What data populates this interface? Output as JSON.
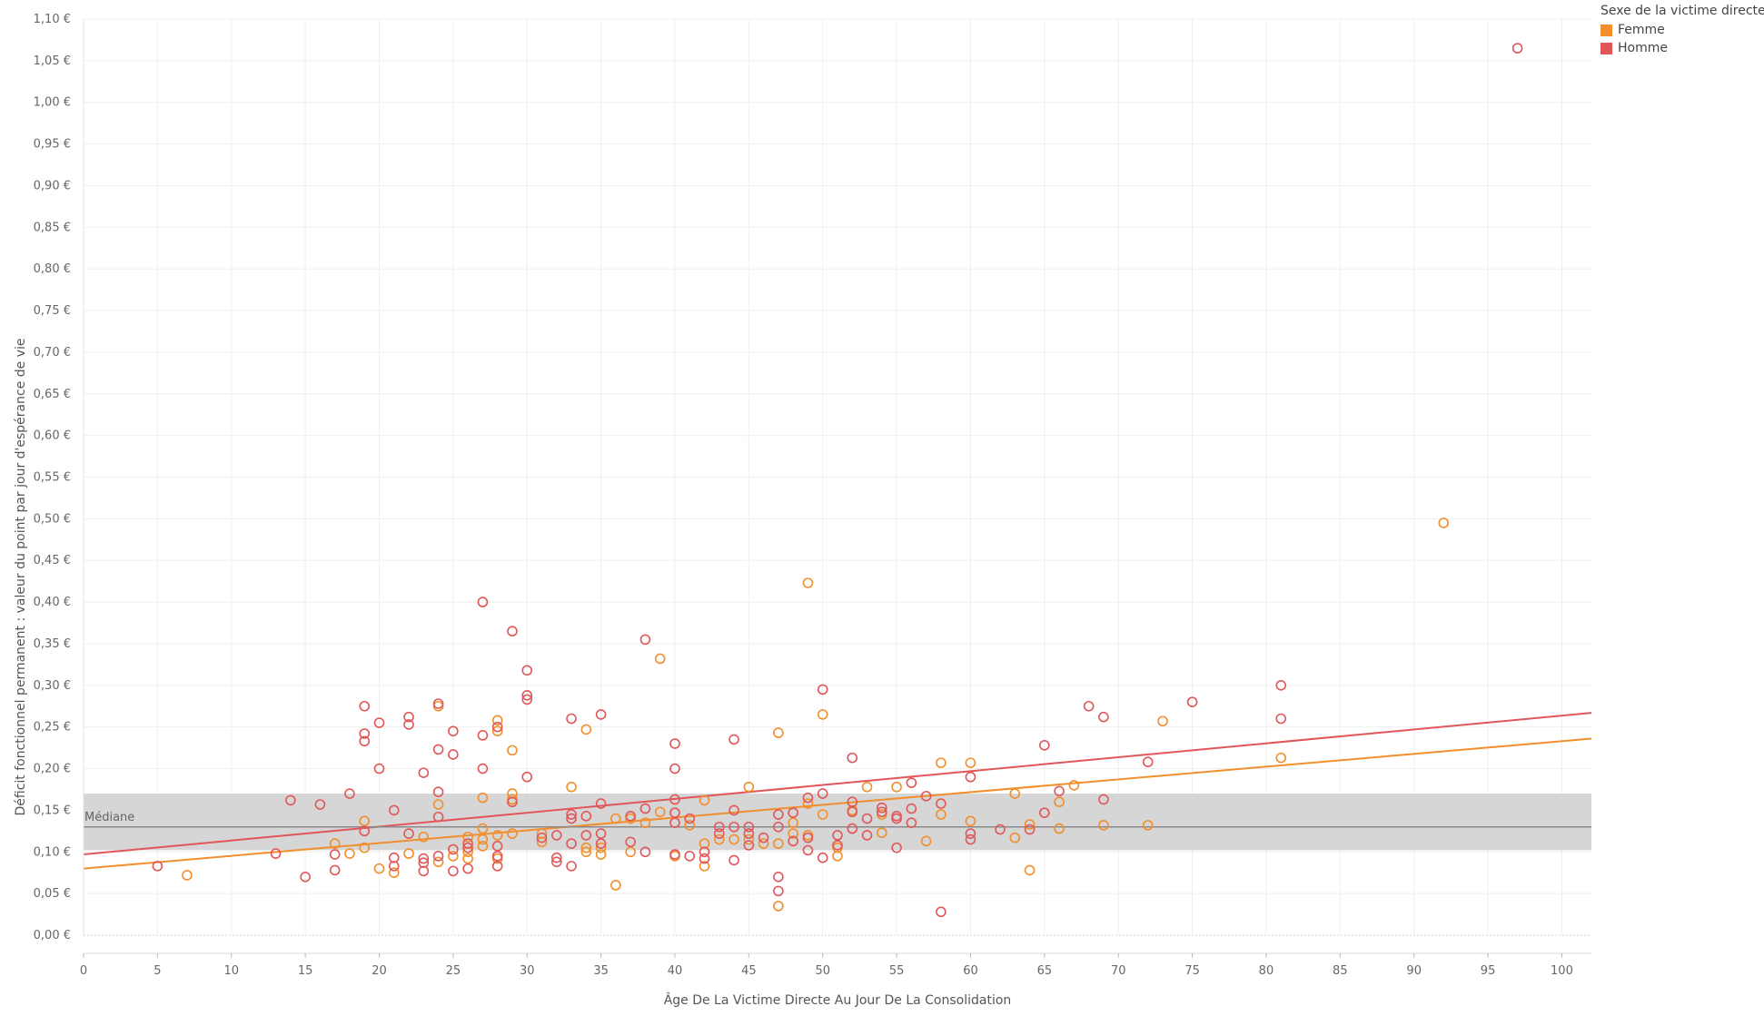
{
  "chart_data": {
    "type": "scatter",
    "xlabel": "Âge De La Victime Directe Au Jour De La Consolidation",
    "ylabel": "Déficit fonctionnel permanent : valeur du point par jour d'espérance de vie",
    "xlim": [
      0,
      102
    ],
    "ylim": [
      0,
      1.1
    ],
    "x_ticks": [
      0,
      5,
      10,
      15,
      20,
      25,
      30,
      35,
      40,
      45,
      50,
      55,
      60,
      65,
      70,
      75,
      80,
      85,
      90,
      95,
      100
    ],
    "x_tick_labels": [
      "0",
      "5",
      "10",
      "15",
      "20",
      "25",
      "30",
      "35",
      "40",
      "45",
      "50",
      "55",
      "60",
      "65",
      "70",
      "75",
      "80",
      "85",
      "90",
      "95",
      "100"
    ],
    "y_ticks": [
      0,
      0.05,
      0.1,
      0.15,
      0.2,
      0.25,
      0.3,
      0.35,
      0.4,
      0.45,
      0.5,
      0.55,
      0.6,
      0.65,
      0.7,
      0.75,
      0.8,
      0.85,
      0.9,
      0.95,
      1.0,
      1.05,
      1.1
    ],
    "y_tick_labels": [
      "0,00 €",
      "0,05 €",
      "0,10 €",
      "0,15 €",
      "0,20 €",
      "0,25 €",
      "0,30 €",
      "0,35 €",
      "0,40 €",
      "0,45 €",
      "0,50 €",
      "0,55 €",
      "0,60 €",
      "0,65 €",
      "0,70 €",
      "0,75 €",
      "0,80 €",
      "0,85 €",
      "0,90 €",
      "0,95 €",
      "1,00 €",
      "1,05 €",
      "1,10 €"
    ],
    "grid": true,
    "legend": {
      "title": "Sexe de la victime directe",
      "position": "top-right",
      "entries": [
        {
          "label": "Femme",
          "color": "#f28e2b"
        },
        {
          "label": "Homme",
          "color": "#e15759"
        }
      ]
    },
    "reference_band": {
      "y_min": 0.102,
      "y_max": 0.17,
      "color": "#d6d6d6"
    },
    "median": {
      "label": "Médiane",
      "value": 0.13
    },
    "series": [
      {
        "name": "Femme",
        "color": "#f28e2b",
        "trend": {
          "x0": 0,
          "y0": 0.08,
          "x1": 102,
          "y1": 0.236
        },
        "points": [
          [
            7,
            0.072
          ],
          [
            17,
            0.11
          ],
          [
            18,
            0.098
          ],
          [
            19,
            0.105
          ],
          [
            19,
            0.137
          ],
          [
            20,
            0.08
          ],
          [
            21,
            0.075
          ],
          [
            22,
            0.098
          ],
          [
            23,
            0.118
          ],
          [
            24,
            0.088
          ],
          [
            24,
            0.157
          ],
          [
            24,
            0.275
          ],
          [
            25,
            0.095
          ],
          [
            26,
            0.092
          ],
          [
            26,
            0.1
          ],
          [
            26,
            0.118
          ],
          [
            27,
            0.107
          ],
          [
            27,
            0.115
          ],
          [
            27,
            0.128
          ],
          [
            27,
            0.165
          ],
          [
            28,
            0.092
          ],
          [
            28,
            0.12
          ],
          [
            28,
            0.245
          ],
          [
            28,
            0.258
          ],
          [
            29,
            0.122
          ],
          [
            29,
            0.163
          ],
          [
            29,
            0.17
          ],
          [
            29,
            0.222
          ],
          [
            31,
            0.112
          ],
          [
            31,
            0.122
          ],
          [
            33,
            0.178
          ],
          [
            34,
            0.1
          ],
          [
            34,
            0.105
          ],
          [
            34,
            0.247
          ],
          [
            35,
            0.097
          ],
          [
            35,
            0.105
          ],
          [
            36,
            0.06
          ],
          [
            36,
            0.14
          ],
          [
            37,
            0.1
          ],
          [
            37,
            0.14
          ],
          [
            38,
            0.135
          ],
          [
            39,
            0.148
          ],
          [
            39,
            0.332
          ],
          [
            40,
            0.095
          ],
          [
            41,
            0.132
          ],
          [
            42,
            0.083
          ],
          [
            42,
            0.11
          ],
          [
            42,
            0.162
          ],
          [
            43,
            0.115
          ],
          [
            44,
            0.115
          ],
          [
            45,
            0.115
          ],
          [
            45,
            0.178
          ],
          [
            46,
            0.11
          ],
          [
            47,
            0.035
          ],
          [
            47,
            0.11
          ],
          [
            47,
            0.243
          ],
          [
            48,
            0.122
          ],
          [
            48,
            0.135
          ],
          [
            49,
            0.12
          ],
          [
            49,
            0.158
          ],
          [
            49,
            0.423
          ],
          [
            50,
            0.145
          ],
          [
            50,
            0.265
          ],
          [
            51,
            0.095
          ],
          [
            51,
            0.105
          ],
          [
            52,
            0.15
          ],
          [
            53,
            0.178
          ],
          [
            54,
            0.123
          ],
          [
            54,
            0.145
          ],
          [
            55,
            0.178
          ],
          [
            57,
            0.113
          ],
          [
            58,
            0.145
          ],
          [
            58,
            0.207
          ],
          [
            60,
            0.137
          ],
          [
            60,
            0.207
          ],
          [
            63,
            0.117
          ],
          [
            63,
            0.17
          ],
          [
            64,
            0.078
          ],
          [
            64,
            0.133
          ],
          [
            66,
            0.128
          ],
          [
            66,
            0.16
          ],
          [
            67,
            0.18
          ],
          [
            69,
            0.132
          ],
          [
            72,
            0.132
          ],
          [
            73,
            0.257
          ],
          [
            81,
            0.213
          ],
          [
            92,
            0.495
          ]
        ]
      },
      {
        "name": "Homme",
        "color": "#e15759",
        "trend": {
          "x0": 0,
          "y0": 0.097,
          "x1": 102,
          "y1": 0.267
        },
        "points": [
          [
            5,
            0.083
          ],
          [
            13,
            0.098
          ],
          [
            14,
            0.162
          ],
          [
            15,
            0.07
          ],
          [
            16,
            0.157
          ],
          [
            17,
            0.078
          ],
          [
            17,
            0.097
          ],
          [
            18,
            0.17
          ],
          [
            19,
            0.125
          ],
          [
            19,
            0.233
          ],
          [
            19,
            0.242
          ],
          [
            19,
            0.275
          ],
          [
            20,
            0.2
          ],
          [
            20,
            0.255
          ],
          [
            21,
            0.083
          ],
          [
            21,
            0.093
          ],
          [
            21,
            0.15
          ],
          [
            22,
            0.122
          ],
          [
            22,
            0.253
          ],
          [
            22,
            0.262
          ],
          [
            23,
            0.077
          ],
          [
            23,
            0.087
          ],
          [
            23,
            0.092
          ],
          [
            23,
            0.195
          ],
          [
            24,
            0.095
          ],
          [
            24,
            0.142
          ],
          [
            24,
            0.172
          ],
          [
            24,
            0.223
          ],
          [
            24,
            0.278
          ],
          [
            25,
            0.077
          ],
          [
            25,
            0.103
          ],
          [
            25,
            0.217
          ],
          [
            25,
            0.245
          ],
          [
            26,
            0.08
          ],
          [
            26,
            0.105
          ],
          [
            26,
            0.11
          ],
          [
            27,
            0.2
          ],
          [
            27,
            0.24
          ],
          [
            27,
            0.4
          ],
          [
            28,
            0.083
          ],
          [
            28,
            0.095
          ],
          [
            28,
            0.107
          ],
          [
            28,
            0.25
          ],
          [
            29,
            0.16
          ],
          [
            29,
            0.365
          ],
          [
            30,
            0.19
          ],
          [
            30,
            0.283
          ],
          [
            30,
            0.288
          ],
          [
            30,
            0.318
          ],
          [
            31,
            0.117
          ],
          [
            32,
            0.088
          ],
          [
            32,
            0.093
          ],
          [
            32,
            0.12
          ],
          [
            33,
            0.083
          ],
          [
            33,
            0.11
          ],
          [
            33,
            0.14
          ],
          [
            33,
            0.145
          ],
          [
            33,
            0.26
          ],
          [
            34,
            0.12
          ],
          [
            34,
            0.143
          ],
          [
            35,
            0.11
          ],
          [
            35,
            0.122
          ],
          [
            35,
            0.158
          ],
          [
            35,
            0.265
          ],
          [
            37,
            0.112
          ],
          [
            37,
            0.143
          ],
          [
            38,
            0.1
          ],
          [
            38,
            0.152
          ],
          [
            38,
            0.355
          ],
          [
            40,
            0.097
          ],
          [
            40,
            0.135
          ],
          [
            40,
            0.147
          ],
          [
            40,
            0.163
          ],
          [
            40,
            0.2
          ],
          [
            40,
            0.23
          ],
          [
            41,
            0.095
          ],
          [
            41,
            0.14
          ],
          [
            42,
            0.092
          ],
          [
            42,
            0.1
          ],
          [
            43,
            0.122
          ],
          [
            43,
            0.13
          ],
          [
            44,
            0.09
          ],
          [
            44,
            0.13
          ],
          [
            44,
            0.15
          ],
          [
            44,
            0.235
          ],
          [
            45,
            0.108
          ],
          [
            45,
            0.122
          ],
          [
            45,
            0.13
          ],
          [
            46,
            0.117
          ],
          [
            47,
            0.053
          ],
          [
            47,
            0.07
          ],
          [
            47,
            0.13
          ],
          [
            47,
            0.145
          ],
          [
            48,
            0.113
          ],
          [
            48,
            0.147
          ],
          [
            49,
            0.102
          ],
          [
            49,
            0.117
          ],
          [
            49,
            0.165
          ],
          [
            50,
            0.093
          ],
          [
            50,
            0.17
          ],
          [
            50,
            0.295
          ],
          [
            51,
            0.12
          ],
          [
            51,
            0.108
          ],
          [
            52,
            0.128
          ],
          [
            52,
            0.148
          ],
          [
            52,
            0.16
          ],
          [
            52,
            0.213
          ],
          [
            53,
            0.12
          ],
          [
            53,
            0.14
          ],
          [
            54,
            0.148
          ],
          [
            54,
            0.153
          ],
          [
            55,
            0.105
          ],
          [
            55,
            0.14
          ],
          [
            55,
            0.143
          ],
          [
            56,
            0.135
          ],
          [
            56,
            0.152
          ],
          [
            56,
            0.183
          ],
          [
            57,
            0.167
          ],
          [
            58,
            0.028
          ],
          [
            58,
            0.158
          ],
          [
            60,
            0.115
          ],
          [
            60,
            0.122
          ],
          [
            60,
            0.19
          ],
          [
            62,
            0.127
          ],
          [
            64,
            0.127
          ],
          [
            65,
            0.147
          ],
          [
            65,
            0.228
          ],
          [
            66,
            0.173
          ],
          [
            68,
            0.275
          ],
          [
            69,
            0.163
          ],
          [
            69,
            0.262
          ],
          [
            72,
            0.208
          ],
          [
            75,
            0.28
          ],
          [
            81,
            0.26
          ],
          [
            81,
            0.3
          ],
          [
            97,
            1.065
          ]
        ]
      }
    ]
  }
}
